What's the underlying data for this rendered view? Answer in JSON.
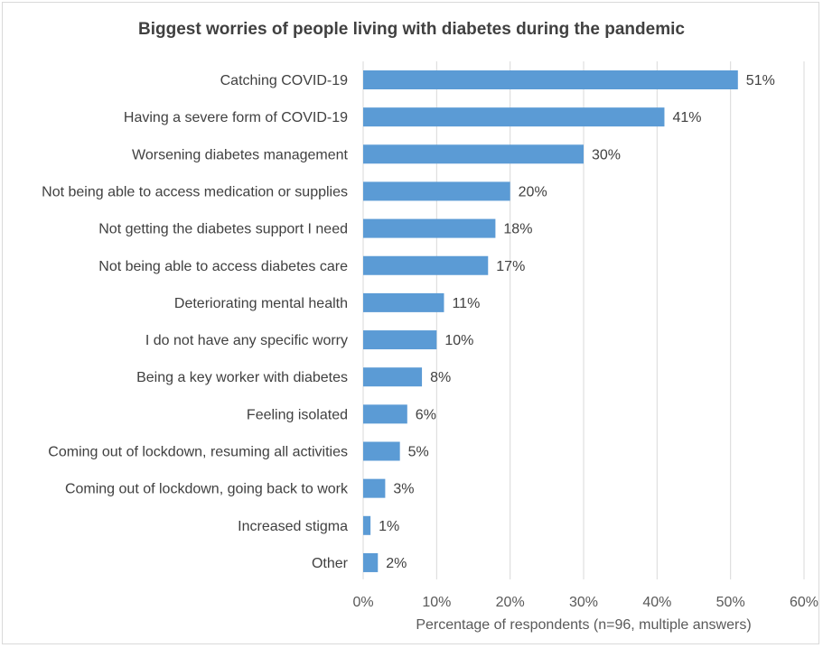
{
  "chart_data": {
    "type": "bar",
    "orientation": "horizontal",
    "title": "Biggest worries of people living with diabetes during the pandemic",
    "xlabel": "Percentage of respondents (n=96, multiple answers)",
    "ylabel": "",
    "xlim": [
      0,
      60
    ],
    "xticks": [
      "0%",
      "10%",
      "20%",
      "30%",
      "40%",
      "50%",
      "60%"
    ],
    "grid": true,
    "legend": "none",
    "bar_color": "#5b9bd5",
    "categories": [
      "Catching COVID-19",
      "Having a severe form of COVID-19",
      "Worsening diabetes management",
      "Not being able to access medication or supplies",
      "Not getting the diabetes support I need",
      "Not being able to access diabetes care",
      "Deteriorating mental health",
      "I do not have any specific worry",
      "Being a key worker with diabetes",
      "Feeling isolated",
      "Coming out of lockdown, resuming all activities",
      "Coming out of lockdown, going back to work",
      "Increased stigma",
      "Other"
    ],
    "values": [
      51,
      41,
      30,
      20,
      18,
      17,
      11,
      10,
      8,
      6,
      5,
      3,
      1,
      2
    ],
    "data_labels": [
      "51%",
      "41%",
      "30%",
      "20%",
      "18%",
      "17%",
      "11%",
      "10%",
      "8%",
      "6%",
      "5%",
      "3%",
      "1%",
      "2%"
    ]
  }
}
